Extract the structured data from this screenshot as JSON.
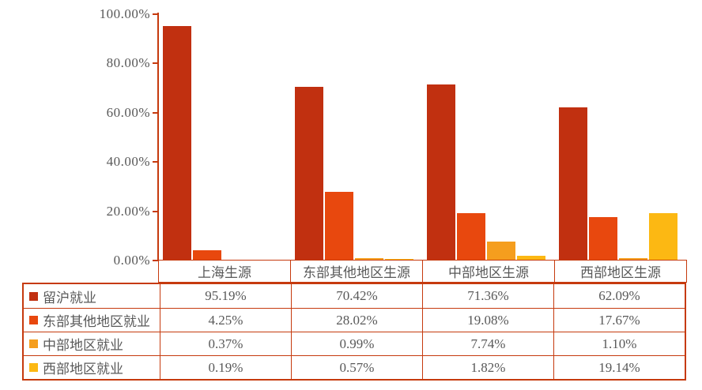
{
  "colors": {
    "axis_and_borders": "#c63a0e",
    "text": "#595959",
    "background": "#ffffff"
  },
  "chart_data": {
    "type": "bar",
    "title": "",
    "xlabel": "",
    "ylabel": "",
    "categories": [
      "上海生源",
      "东部其他地区生源",
      "中部地区生源",
      "西部地区生源"
    ],
    "series": [
      {
        "name": "留沪就业",
        "color": "#c13010",
        "values": [
          95.19,
          70.42,
          71.36,
          62.09
        ]
      },
      {
        "name": "东部其他地区就业",
        "color": "#e8480e",
        "values": [
          4.25,
          28.02,
          19.08,
          17.67
        ]
      },
      {
        "name": "中部地区就业",
        "color": "#f59e1e",
        "values": [
          0.37,
          0.99,
          7.74,
          1.1
        ]
      },
      {
        "name": "西部地区就业",
        "color": "#fcb813",
        "values": [
          0.19,
          0.57,
          1.82,
          19.14
        ]
      }
    ],
    "table_display_values": [
      [
        "95.19%",
        "70.42%",
        "71.36%",
        "62.09%"
      ],
      [
        "4.25%",
        "28.02%",
        "19.08%",
        "17.67%"
      ],
      [
        "0.37%",
        "0.99%",
        "7.74%",
        "1.10%"
      ],
      [
        "0.19%",
        "0.57%",
        "1.82%",
        "19.14%"
      ]
    ],
    "y_tick_labels": [
      "0.00%",
      "20.00%",
      "40.00%",
      "60.00%",
      "80.00%",
      "100.00%"
    ],
    "ylim": [
      0,
      100
    ],
    "grid": false,
    "legend_position": "data-table-left-column"
  }
}
